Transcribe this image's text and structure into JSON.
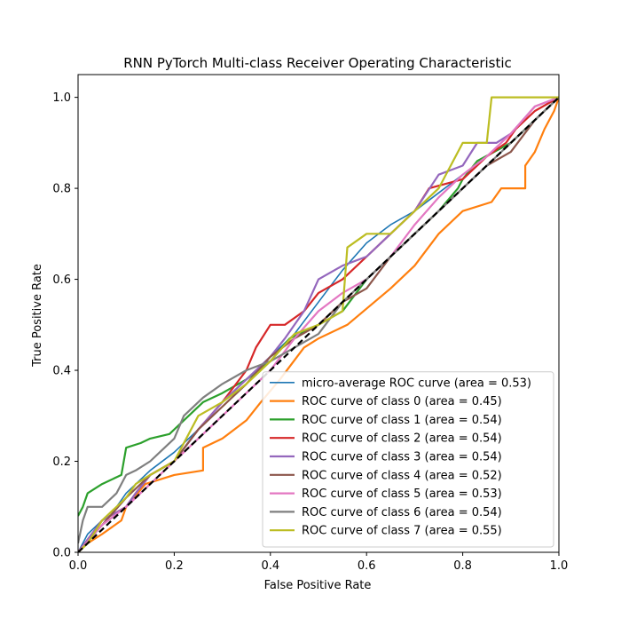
{
  "chart_data": {
    "type": "line",
    "title": "RNN PyTorch Multi-class Receiver Operating Characteristic",
    "xlabel": "False Positive Rate",
    "ylabel": "True Positive Rate",
    "xlim": [
      0.0,
      1.0
    ],
    "ylim": [
      0.0,
      1.05
    ],
    "xticks": [
      "0.0",
      "0.2",
      "0.4",
      "0.6",
      "0.8",
      "1.0"
    ],
    "yticks": [
      "0.0",
      "0.2",
      "0.4",
      "0.6",
      "0.8",
      "1.0"
    ],
    "grid": false,
    "legend_position": "lower-right",
    "reference_line": {
      "x": [
        0,
        1
      ],
      "y": [
        0,
        1
      ],
      "color": "#000000",
      "style": "dashed"
    },
    "series": [
      {
        "name": "micro-average ROC curve (area = 0.53)",
        "color": "#1f77b4",
        "x": [
          0.0,
          0.02,
          0.05,
          0.08,
          0.1,
          0.15,
          0.2,
          0.25,
          0.3,
          0.35,
          0.4,
          0.45,
          0.5,
          0.55,
          0.6,
          0.65,
          0.7,
          0.75,
          0.8,
          0.85,
          0.9,
          0.95,
          1.0
        ],
        "y": [
          0.0,
          0.04,
          0.07,
          0.1,
          0.13,
          0.18,
          0.22,
          0.27,
          0.33,
          0.38,
          0.43,
          0.48,
          0.55,
          0.62,
          0.68,
          0.72,
          0.75,
          0.79,
          0.83,
          0.87,
          0.92,
          0.97,
          1.0
        ]
      },
      {
        "name": "ROC curve of class 0 (area = 0.45)",
        "color": "#ff7f0e",
        "x": [
          0.0,
          0.02,
          0.05,
          0.09,
          0.1,
          0.14,
          0.2,
          0.26,
          0.26,
          0.3,
          0.35,
          0.38,
          0.42,
          0.47,
          0.5,
          0.56,
          0.65,
          0.7,
          0.75,
          0.8,
          0.86,
          0.88,
          0.93,
          0.93,
          0.95,
          0.97,
          0.99,
          1.0
        ],
        "y": [
          0.0,
          0.02,
          0.04,
          0.07,
          0.1,
          0.15,
          0.17,
          0.18,
          0.23,
          0.25,
          0.29,
          0.33,
          0.38,
          0.45,
          0.47,
          0.5,
          0.58,
          0.63,
          0.7,
          0.75,
          0.77,
          0.8,
          0.8,
          0.85,
          0.88,
          0.93,
          0.97,
          1.0
        ]
      },
      {
        "name": "ROC curve of class 1 (area = 0.54)",
        "color": "#2ca02c",
        "x": [
          0.0,
          0.01,
          0.02,
          0.05,
          0.09,
          0.1,
          0.13,
          0.15,
          0.19,
          0.2,
          0.26,
          0.3,
          0.35,
          0.4,
          0.44,
          0.5,
          0.55,
          0.6,
          0.65,
          0.7,
          0.75,
          0.79,
          0.8,
          0.83,
          0.9,
          0.95,
          1.0
        ],
        "y": [
          0.08,
          0.1,
          0.13,
          0.15,
          0.17,
          0.23,
          0.24,
          0.25,
          0.26,
          0.27,
          0.33,
          0.35,
          0.38,
          0.42,
          0.47,
          0.5,
          0.53,
          0.6,
          0.65,
          0.7,
          0.75,
          0.8,
          0.82,
          0.86,
          0.9,
          0.95,
          1.0
        ]
      },
      {
        "name": "ROC curve of class 2 (area = 0.54)",
        "color": "#d62728",
        "x": [
          0.0,
          0.05,
          0.1,
          0.12,
          0.15,
          0.2,
          0.25,
          0.3,
          0.35,
          0.37,
          0.4,
          0.43,
          0.47,
          0.5,
          0.55,
          0.6,
          0.65,
          0.7,
          0.73,
          0.8,
          0.85,
          0.89,
          0.91,
          0.95,
          1.0
        ],
        "y": [
          0.0,
          0.07,
          0.1,
          0.13,
          0.17,
          0.2,
          0.27,
          0.33,
          0.4,
          0.45,
          0.5,
          0.5,
          0.53,
          0.57,
          0.6,
          0.65,
          0.7,
          0.75,
          0.8,
          0.82,
          0.87,
          0.9,
          0.93,
          0.97,
          1.0
        ]
      },
      {
        "name": "ROC curve of class 3 (area = 0.54)",
        "color": "#9467bd",
        "x": [
          0.0,
          0.05,
          0.1,
          0.12,
          0.15,
          0.2,
          0.25,
          0.3,
          0.35,
          0.4,
          0.43,
          0.47,
          0.5,
          0.55,
          0.6,
          0.65,
          0.7,
          0.75,
          0.8,
          0.83,
          0.87,
          0.9,
          0.95,
          1.0
        ],
        "y": [
          0.0,
          0.07,
          0.1,
          0.13,
          0.17,
          0.2,
          0.27,
          0.33,
          0.38,
          0.43,
          0.47,
          0.53,
          0.6,
          0.63,
          0.65,
          0.7,
          0.75,
          0.83,
          0.85,
          0.9,
          0.9,
          0.92,
          0.98,
          1.0
        ]
      },
      {
        "name": "ROC curve of class 4 (area = 0.52)",
        "color": "#8c564b",
        "x": [
          0.0,
          0.05,
          0.1,
          0.15,
          0.2,
          0.25,
          0.3,
          0.35,
          0.4,
          0.45,
          0.5,
          0.55,
          0.6,
          0.65,
          0.7,
          0.75,
          0.8,
          0.85,
          0.9,
          0.95,
          1.0
        ],
        "y": [
          0.0,
          0.06,
          0.12,
          0.17,
          0.2,
          0.27,
          0.32,
          0.37,
          0.43,
          0.47,
          0.5,
          0.55,
          0.58,
          0.65,
          0.7,
          0.75,
          0.8,
          0.85,
          0.88,
          0.95,
          1.0
        ]
      },
      {
        "name": "ROC curve of class 5 (area = 0.53)",
        "color": "#e377c2",
        "x": [
          0.0,
          0.05,
          0.1,
          0.15,
          0.2,
          0.25,
          0.3,
          0.35,
          0.4,
          0.45,
          0.5,
          0.55,
          0.6,
          0.65,
          0.7,
          0.75,
          0.8,
          0.85,
          0.9,
          0.95,
          1.0
        ],
        "y": [
          0.0,
          0.06,
          0.1,
          0.15,
          0.2,
          0.25,
          0.3,
          0.35,
          0.4,
          0.47,
          0.53,
          0.57,
          0.6,
          0.65,
          0.72,
          0.78,
          0.83,
          0.87,
          0.92,
          0.98,
          1.0
        ]
      },
      {
        "name": "ROC curve of class 6 (area = 0.54)",
        "color": "#7f7f7f",
        "x": [
          0.0,
          0.01,
          0.02,
          0.05,
          0.08,
          0.1,
          0.12,
          0.15,
          0.2,
          0.22,
          0.26,
          0.3,
          0.35,
          0.4,
          0.45,
          0.5,
          0.55,
          0.6,
          0.65,
          0.7,
          0.75,
          0.8,
          0.85,
          0.9,
          0.95,
          1.0
        ],
        "y": [
          0.02,
          0.07,
          0.1,
          0.1,
          0.13,
          0.17,
          0.18,
          0.2,
          0.25,
          0.3,
          0.34,
          0.37,
          0.4,
          0.42,
          0.45,
          0.48,
          0.55,
          0.6,
          0.65,
          0.7,
          0.75,
          0.8,
          0.85,
          0.9,
          0.95,
          1.0
        ]
      },
      {
        "name": "ROC curve of class 7 (area = 0.55)",
        "color": "#bcbd22",
        "x": [
          0.0,
          0.02,
          0.05,
          0.1,
          0.12,
          0.15,
          0.2,
          0.25,
          0.3,
          0.35,
          0.4,
          0.45,
          0.5,
          0.55,
          0.56,
          0.6,
          0.65,
          0.7,
          0.75,
          0.8,
          0.85,
          0.86,
          0.9,
          0.95,
          1.0
        ],
        "y": [
          0.0,
          0.02,
          0.07,
          0.12,
          0.15,
          0.17,
          0.2,
          0.3,
          0.33,
          0.37,
          0.42,
          0.48,
          0.5,
          0.53,
          0.67,
          0.7,
          0.7,
          0.75,
          0.8,
          0.9,
          0.9,
          1.0,
          1.0,
          1.0,
          1.0
        ]
      }
    ]
  }
}
